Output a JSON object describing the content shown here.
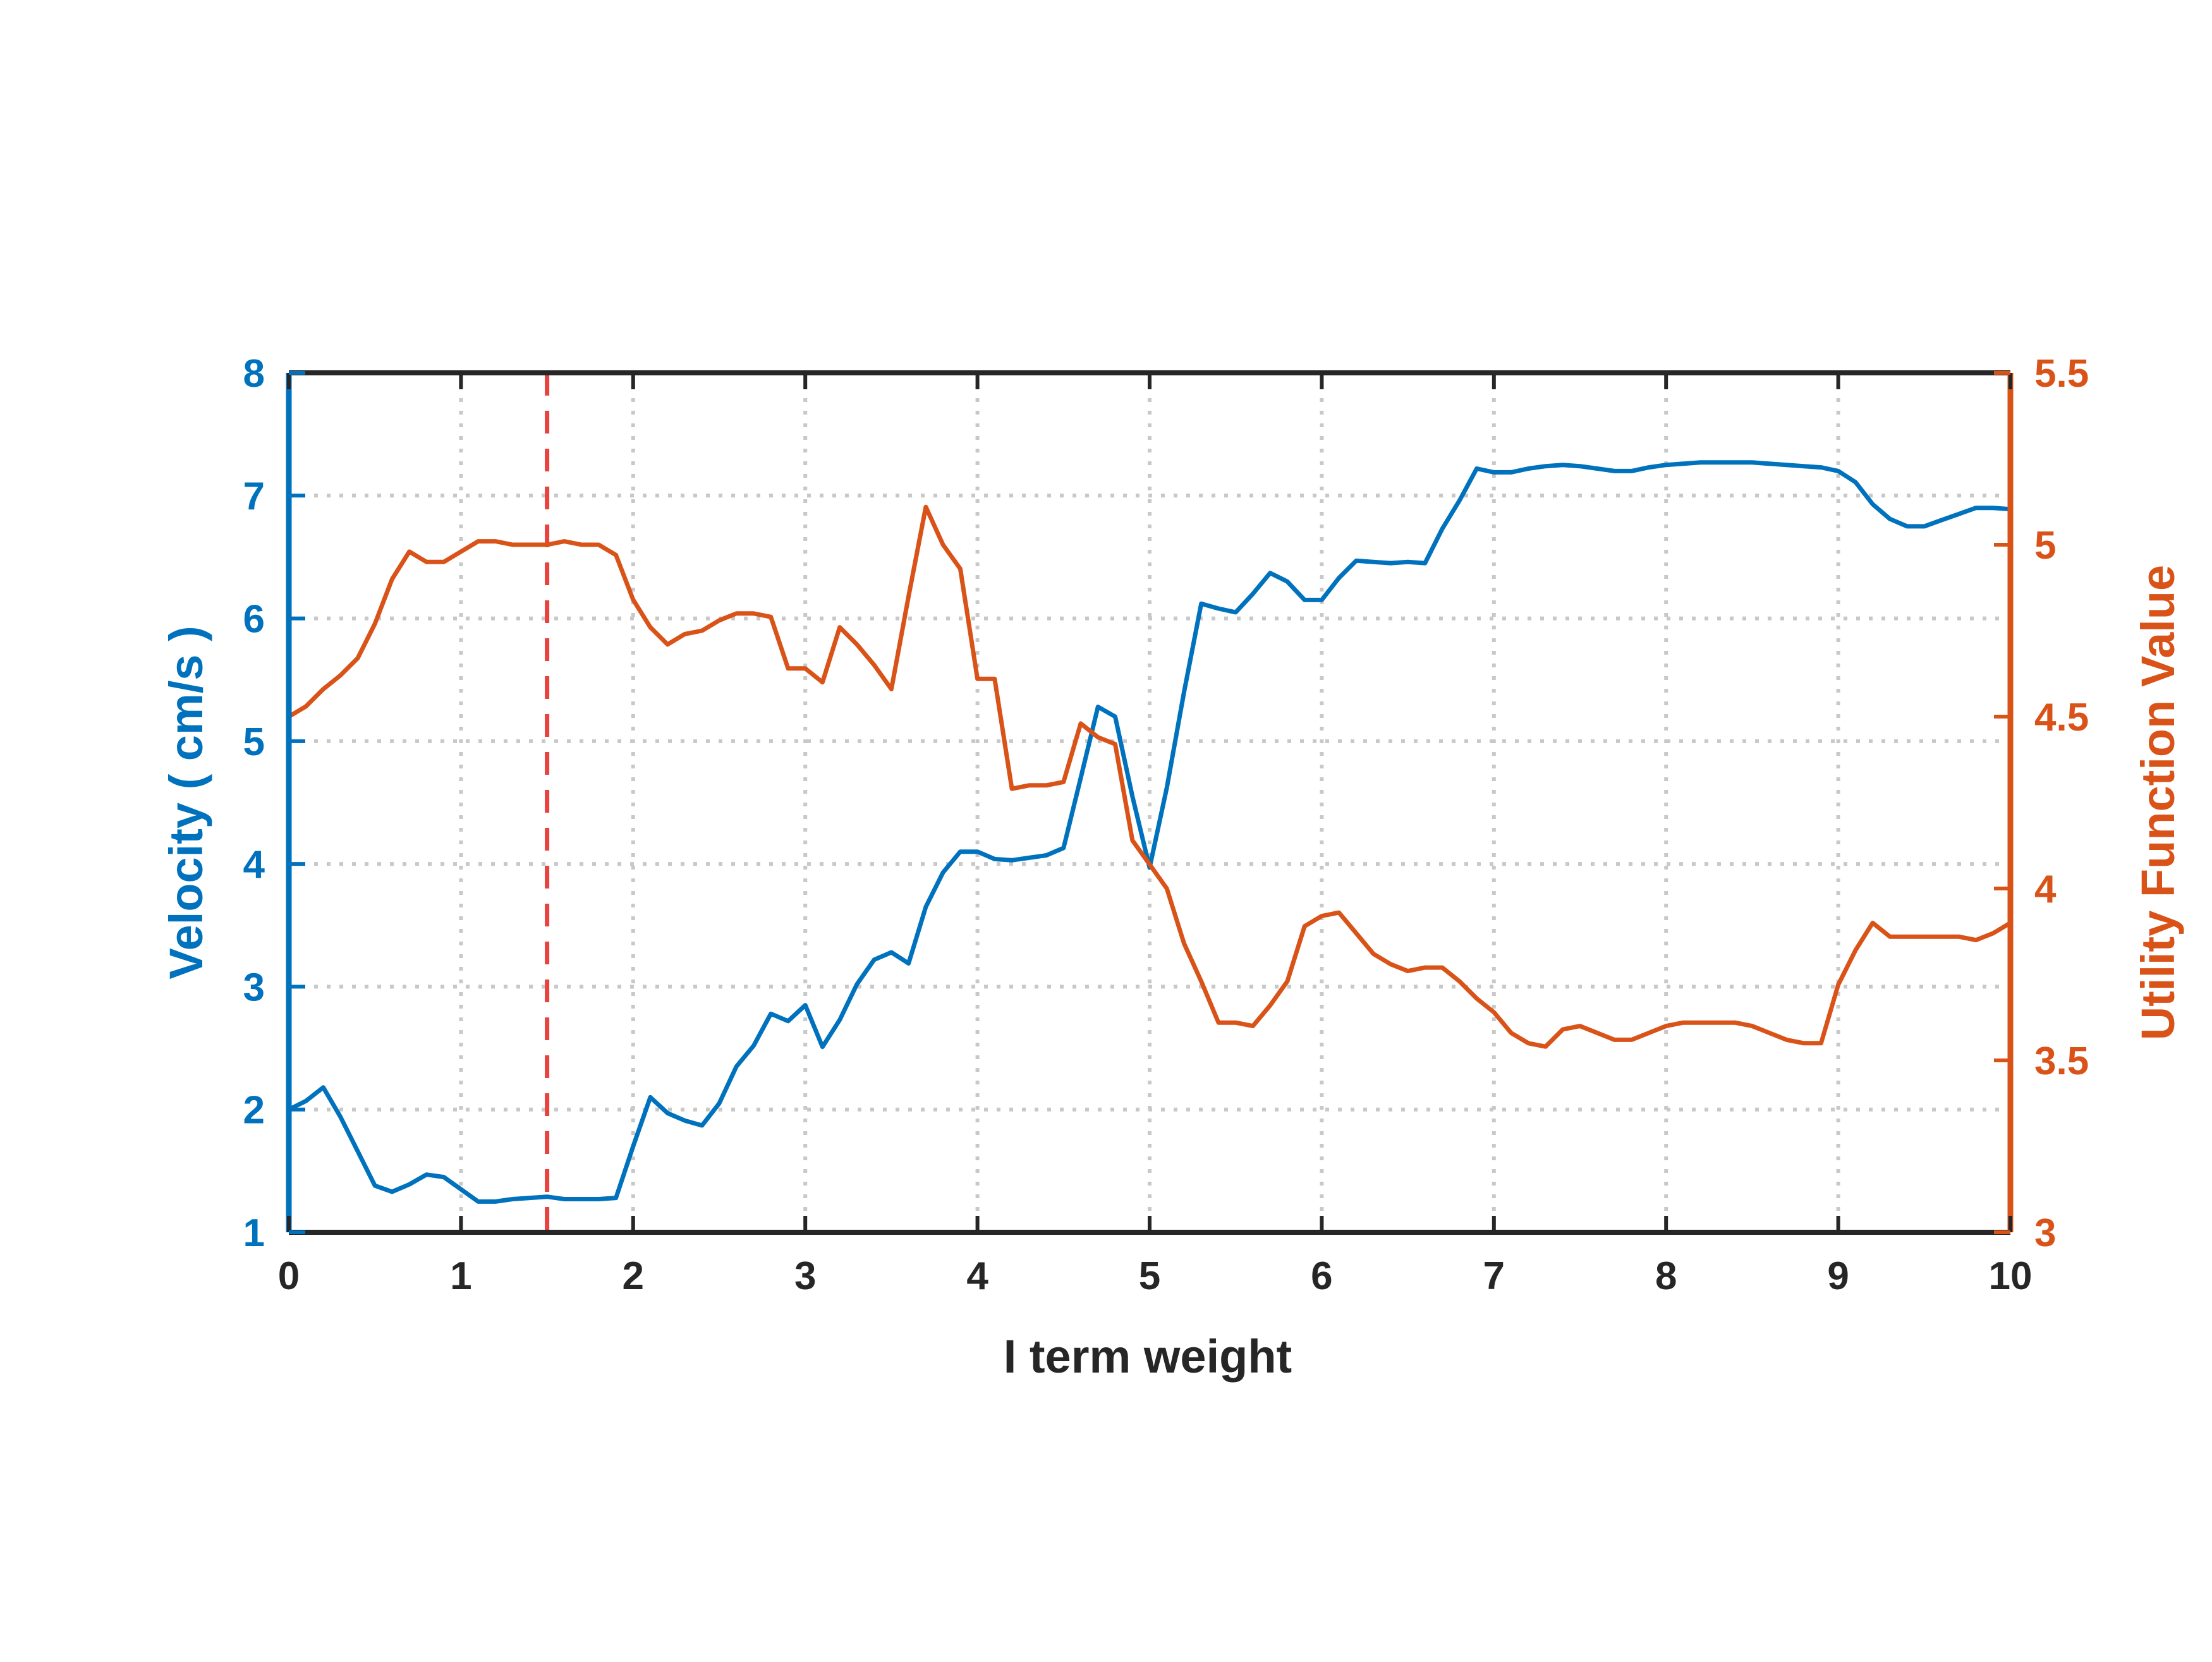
{
  "chart_data": {
    "type": "line",
    "title": "",
    "xlabel": "I term weight",
    "ylabel_left": "Velocity ( cm/s )",
    "ylabel_right": "Utility Function Value",
    "xlim": [
      0,
      10
    ],
    "ylim_left": [
      1,
      8
    ],
    "ylim_right": [
      3,
      5.5
    ],
    "x_ticks": [
      "0",
      "1",
      "2",
      "3",
      "4",
      "5",
      "6",
      "7",
      "8",
      "9",
      "10"
    ],
    "y_left_ticks": [
      "1",
      "2",
      "3",
      "4",
      "5",
      "6",
      "7",
      "8"
    ],
    "y_right_ticks": [
      "3",
      "3.5",
      "4",
      "4.5",
      "5",
      "5.5"
    ],
    "grid": true,
    "reference_line": {
      "x": 1.5,
      "style": "dashed",
      "color": "#E8433F"
    },
    "colors": {
      "velocity": "#0072BD",
      "utility": "#D95319",
      "axis": "#262626",
      "grid": "#c8c8c8"
    },
    "series": [
      {
        "axis": "left",
        "x": [
          0.0,
          0.1,
          0.2,
          0.3,
          0.4,
          0.5,
          0.6,
          0.7,
          0.8,
          0.9,
          1.0,
          1.1,
          1.2,
          1.3,
          1.4,
          1.5,
          1.6,
          1.7,
          1.8,
          1.9,
          2.0,
          2.1,
          2.2,
          2.3,
          2.4,
          2.5,
          2.6,
          2.7,
          2.8,
          2.9,
          3.0,
          3.1,
          3.2,
          3.3,
          3.4,
          3.5,
          3.6,
          3.7,
          3.8,
          3.9,
          4.0,
          4.1,
          4.2,
          4.3,
          4.4,
          4.5,
          4.6,
          4.7,
          4.8,
          4.9,
          5.0,
          5.1,
          5.2,
          5.3,
          5.4,
          5.5,
          5.6,
          5.7,
          5.8,
          5.9,
          6.0,
          6.1,
          6.2,
          6.3,
          6.4,
          6.5,
          6.6,
          6.7,
          6.8,
          6.9,
          7.0,
          7.1,
          7.2,
          7.3,
          7.4,
          7.5,
          7.6,
          7.7,
          7.8,
          7.9,
          8.0,
          8.1,
          8.2,
          8.3,
          8.4,
          8.5,
          8.6,
          8.7,
          8.8,
          8.9,
          9.0,
          9.1,
          9.2,
          9.3,
          9.4,
          9.5,
          9.6,
          9.7,
          9.8,
          9.9,
          10.0
        ],
        "values": [
          2.0,
          2.07,
          2.18,
          1.94,
          1.66,
          1.38,
          1.33,
          1.39,
          1.47,
          1.45,
          1.35,
          1.25,
          1.25,
          1.27,
          1.28,
          1.29,
          1.27,
          1.27,
          1.27,
          1.28,
          1.7,
          2.1,
          1.97,
          1.91,
          1.87,
          2.05,
          2.35,
          2.52,
          2.78,
          2.72,
          2.85,
          2.51,
          2.73,
          3.02,
          3.22,
          3.28,
          3.19,
          3.65,
          3.93,
          4.1,
          4.1,
          4.04,
          4.03,
          4.05,
          4.07,
          4.13,
          4.7,
          5.28,
          5.2,
          4.55,
          3.97,
          4.62,
          5.4,
          6.12,
          6.08,
          6.05,
          6.2,
          6.37,
          6.3,
          6.15,
          6.15,
          6.33,
          6.47,
          6.46,
          6.45,
          6.46,
          6.45,
          6.73,
          6.96,
          7.22,
          7.19,
          7.19,
          7.22,
          7.24,
          7.25,
          7.24,
          7.22,
          7.2,
          7.2,
          7.23,
          7.25,
          7.26,
          7.27,
          7.27,
          7.27,
          7.27,
          7.26,
          7.25,
          7.24,
          7.23,
          7.2,
          7.11,
          6.93,
          6.81,
          6.75,
          6.75,
          6.8,
          6.85,
          6.9,
          6.9,
          6.89
        ]
      },
      {
        "axis": "right",
        "x": [
          0.0,
          0.1,
          0.2,
          0.3,
          0.4,
          0.5,
          0.6,
          0.7,
          0.8,
          0.9,
          1.0,
          1.1,
          1.2,
          1.3,
          1.4,
          1.5,
          1.6,
          1.7,
          1.8,
          1.9,
          2.0,
          2.1,
          2.2,
          2.3,
          2.4,
          2.5,
          2.6,
          2.7,
          2.8,
          2.9,
          3.0,
          3.1,
          3.2,
          3.3,
          3.4,
          3.5,
          3.6,
          3.7,
          3.8,
          3.9,
          4.0,
          4.1,
          4.2,
          4.3,
          4.4,
          4.5,
          4.6,
          4.7,
          4.8,
          4.9,
          5.0,
          5.1,
          5.2,
          5.3,
          5.4,
          5.5,
          5.6,
          5.7,
          5.8,
          5.9,
          6.0,
          6.1,
          6.2,
          6.3,
          6.4,
          6.5,
          6.6,
          6.7,
          6.8,
          6.9,
          7.0,
          7.1,
          7.2,
          7.3,
          7.4,
          7.5,
          7.6,
          7.7,
          7.8,
          7.9,
          8.0,
          8.1,
          8.2,
          8.3,
          8.4,
          8.5,
          8.6,
          8.7,
          8.8,
          8.9,
          9.0,
          9.1,
          9.2,
          9.3,
          9.4,
          9.5,
          9.6,
          9.7,
          9.8,
          9.9,
          10.0
        ],
        "values": [
          4.5,
          4.53,
          4.58,
          4.62,
          4.67,
          4.77,
          4.9,
          4.98,
          4.95,
          4.95,
          4.98,
          5.01,
          5.01,
          5.0,
          5.0,
          5.0,
          5.01,
          5.0,
          5.0,
          4.97,
          4.84,
          4.76,
          4.71,
          4.74,
          4.75,
          4.78,
          4.8,
          4.8,
          4.79,
          4.64,
          4.64,
          4.6,
          4.76,
          4.71,
          4.65,
          4.58,
          4.85,
          5.11,
          5.0,
          4.93,
          4.61,
          4.61,
          4.29,
          4.3,
          4.3,
          4.31,
          4.48,
          4.44,
          4.42,
          4.14,
          4.07,
          4.0,
          3.84,
          3.73,
          3.61,
          3.61,
          3.6,
          3.66,
          3.73,
          3.89,
          3.92,
          3.93,
          3.87,
          3.81,
          3.78,
          3.76,
          3.77,
          3.77,
          3.73,
          3.68,
          3.64,
          3.58,
          3.55,
          3.54,
          3.59,
          3.6,
          3.58,
          3.56,
          3.56,
          3.58,
          3.6,
          3.61,
          3.61,
          3.61,
          3.61,
          3.6,
          3.58,
          3.56,
          3.55,
          3.55,
          3.72,
          3.82,
          3.9,
          3.86,
          3.86,
          3.86,
          3.86,
          3.86,
          3.85,
          3.87,
          3.9
        ]
      }
    ]
  }
}
